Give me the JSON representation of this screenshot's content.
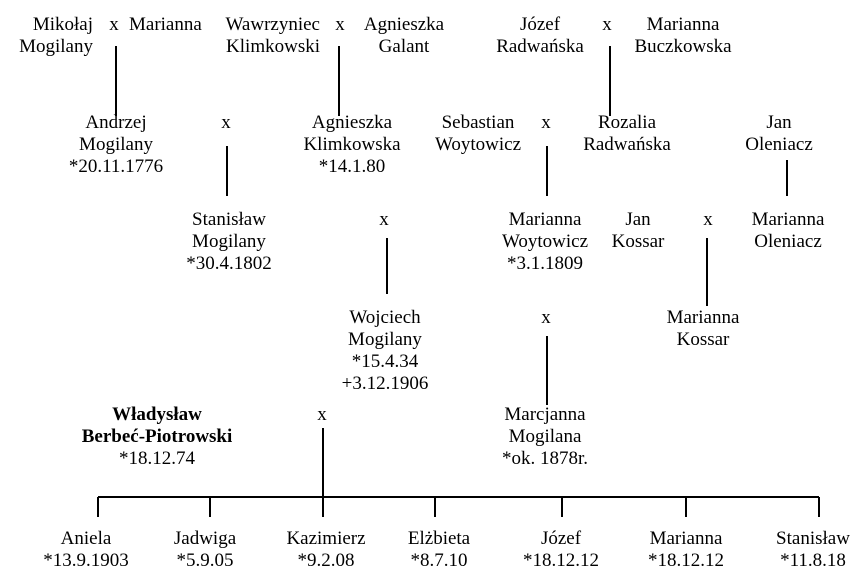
{
  "marriage_symbol": "x",
  "people": {
    "mikolaj": {
      "line1": "Mikołaj",
      "line2": "Mogilany"
    },
    "marianna_1": {
      "line1": "Marianna"
    },
    "wawrzyniec": {
      "line1": "Wawrzyniec",
      "line2": "Klimkowski"
    },
    "agnieszka_galant": {
      "line1": "Agnieszka",
      "line2": "Galant"
    },
    "jozef_radwanska": {
      "line1": "Józef",
      "line2": "Radwańska"
    },
    "marianna_buczkowska": {
      "line1": "Marianna",
      "line2": "Buczkowska"
    },
    "andrzej": {
      "line1": "Andrzej",
      "line2": "Mogilany",
      "line3": "*20.11.1776"
    },
    "agnieszka_klimkowska": {
      "line1": "Agnieszka",
      "line2": "Klimkowska",
      "line3": "*14.1.80"
    },
    "sebastian": {
      "line1": "Sebastian",
      "line2": "Woytowicz"
    },
    "rozalia": {
      "line1": "Rozalia",
      "line2": "Radwańska"
    },
    "jan_oleniacz": {
      "line1": "Jan",
      "line2": "Oleniacz"
    },
    "stanislaw_1802": {
      "line1": "Stanisław",
      "line2": "Mogilany",
      "line3": "*30.4.1802"
    },
    "marianna_woytowicz": {
      "line1": "Marianna",
      "line2": "Woytowicz",
      "line3": "*3.1.1809"
    },
    "jan_kossar": {
      "line1": "Jan",
      "line2": "Kossar"
    },
    "marianna_oleniacz": {
      "line1": "Marianna",
      "line2": "Oleniacz"
    },
    "wojciech": {
      "line1": "Wojciech",
      "line2": "Mogilany",
      "line3": "*15.4.34",
      "line4": "+3.12.1906"
    },
    "marianna_kossar": {
      "line1": "Marianna",
      "line2": "Kossar"
    },
    "wladyslaw": {
      "line1": "Władysław",
      "line2": "Berbeć-Piotrowski",
      "line3": "*18.12.74"
    },
    "marcjanna": {
      "line1": "Marcjanna",
      "line2": "Mogilana",
      "line3": "*ok. 1878r."
    }
  },
  "children": [
    {
      "name": "Aniela",
      "date": "*13.9.1903"
    },
    {
      "name": "Jadwiga",
      "date": "*5.9.05"
    },
    {
      "name": "Kazimierz",
      "date": "*9.2.08"
    },
    {
      "name": "Elżbieta",
      "date": "*8.7.10"
    },
    {
      "name": "Józef",
      "date": "*18.12.12"
    },
    {
      "name": "Marianna",
      "date": "*18.12.12"
    },
    {
      "name": "Stanisław",
      "date": "*11.8.18"
    }
  ]
}
